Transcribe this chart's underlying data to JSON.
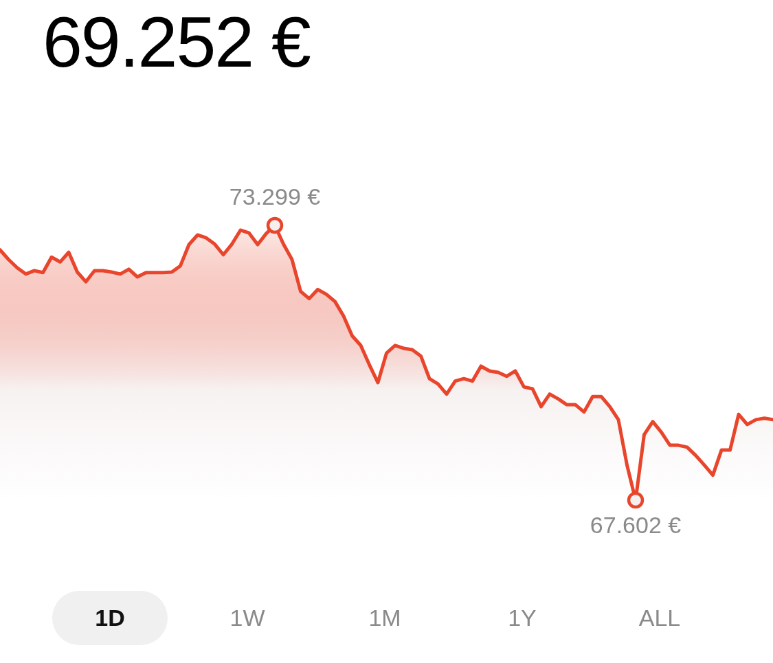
{
  "chart_data": {
    "type": "area",
    "title": "69.252 €",
    "categories": [
      null,
      null,
      null,
      null,
      null,
      null,
      null,
      null,
      null,
      null,
      null,
      null,
      null,
      null,
      null,
      null,
      null,
      null,
      null,
      null,
      null,
      null,
      null,
      null,
      null,
      null,
      null,
      null,
      null,
      null,
      null,
      null,
      null,
      null,
      null,
      null,
      null,
      null,
      null,
      null,
      null,
      null,
      null,
      null,
      null,
      null,
      null,
      null,
      null,
      null,
      null,
      null,
      null,
      null,
      null,
      null,
      null,
      null,
      null,
      null,
      null,
      null,
      null,
      null,
      null,
      null,
      null,
      null,
      null,
      null,
      null,
      null,
      null,
      null,
      null,
      null,
      null,
      null,
      null,
      null,
      null,
      null,
      null,
      null,
      null,
      null,
      null,
      null,
      null,
      null,
      null
    ],
    "series": [
      {
        "color": "#e8452c",
        "values": [
          72.79,
          72.59,
          72.42,
          72.29,
          72.36,
          72.32,
          72.64,
          72.54,
          72.74,
          72.33,
          72.13,
          72.36,
          72.36,
          72.33,
          72.29,
          72.39,
          72.23,
          72.32,
          72.32,
          72.32,
          72.33,
          72.46,
          72.9,
          73.1,
          73.04,
          72.91,
          72.69,
          72.91,
          73.2,
          73.14,
          72.9,
          73.13,
          73.299,
          72.91,
          72.59,
          71.93,
          71.78,
          71.97,
          71.87,
          71.72,
          71.42,
          71.01,
          70.81,
          70.41,
          70.04,
          70.65,
          70.81,
          70.75,
          70.72,
          70.59,
          70.12,
          70.01,
          69.8,
          70.07,
          70.12,
          70.07,
          70.38,
          70.28,
          70.25,
          70.17,
          70.28,
          69.95,
          69.91,
          69.54,
          69.8,
          69.7,
          69.58,
          69.58,
          69.43,
          69.75,
          69.75,
          69.54,
          69.27,
          68.33,
          67.602,
          68.96,
          69.23,
          69.01,
          68.74,
          68.74,
          68.7,
          68.53,
          68.33,
          68.12,
          68.64,
          68.64,
          69.38,
          69.17,
          69.27,
          69.3,
          69.27
        ],
        "value_labels": [
          null,
          null,
          null,
          null,
          null,
          null,
          null,
          null,
          null,
          null,
          null,
          null,
          null,
          null,
          null,
          null,
          null,
          null,
          null,
          null,
          null,
          null,
          null,
          null,
          null,
          null,
          null,
          null,
          null,
          null,
          null,
          null,
          "73.299 €",
          null,
          null,
          null,
          null,
          null,
          null,
          null,
          null,
          null,
          null,
          null,
          null,
          null,
          null,
          null,
          null,
          null,
          null,
          null,
          null,
          null,
          null,
          null,
          null,
          null,
          null,
          null,
          null,
          null,
          null,
          null,
          null,
          null,
          null,
          null,
          null,
          null,
          null,
          null,
          null,
          null,
          "67.602 €",
          null,
          null,
          null,
          null,
          null,
          null,
          null,
          null,
          null,
          null,
          null,
          null,
          null,
          null,
          null,
          null
        ]
      }
    ],
    "tick_labels": false,
    "legend": false,
    "marker": "none",
    "annotations": [
      "1D",
      "1W",
      "1M",
      "1Y",
      "ALL"
    ]
  }
}
